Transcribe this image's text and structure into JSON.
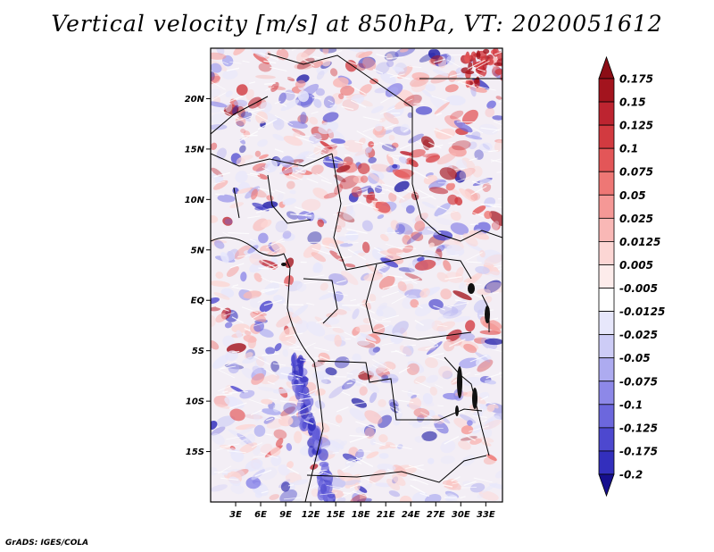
{
  "title": "Vertical velocity [m/s] at 850hPa, VT: 2020051612",
  "credit": "GrADS: IGES/COLA",
  "map": {
    "lon_range": [
      0,
      35
    ],
    "lat_range": [
      -20,
      25
    ],
    "lat_ticks": [
      {
        "value": 20,
        "label": "20N"
      },
      {
        "value": 15,
        "label": "15N"
      },
      {
        "value": 10,
        "label": "10N"
      },
      {
        "value": 5,
        "label": "5N"
      },
      {
        "value": 0,
        "label": "EQ"
      },
      {
        "value": -5,
        "label": "5S"
      },
      {
        "value": -10,
        "label": "10S"
      },
      {
        "value": -15,
        "label": "15S"
      }
    ],
    "lon_ticks": [
      {
        "value": 3,
        "label": "3E"
      },
      {
        "value": 6,
        "label": "6E"
      },
      {
        "value": 9,
        "label": "9E"
      },
      {
        "value": 12,
        "label": "12E"
      },
      {
        "value": 15,
        "label": "15E"
      },
      {
        "value": 18,
        "label": "18E"
      },
      {
        "value": 21,
        "label": "21E"
      },
      {
        "value": 24,
        "label": "24E"
      },
      {
        "value": 27,
        "label": "27E"
      },
      {
        "value": 30,
        "label": "30E"
      },
      {
        "value": 33,
        "label": "33E"
      }
    ]
  },
  "colorbar": {
    "levels": [
      {
        "label": "0.175",
        "color": "#a3141e"
      },
      {
        "label": "0.15",
        "color": "#bd2430"
      },
      {
        "label": "0.125",
        "color": "#d23a40"
      },
      {
        "label": "0.1",
        "color": "#e35658"
      },
      {
        "label": "0.075",
        "color": "#ee7775"
      },
      {
        "label": "0.05",
        "color": "#f59896"
      },
      {
        "label": "0.025",
        "color": "#f9b8b6"
      },
      {
        "label": "0.0125",
        "color": "#fcd6d4"
      },
      {
        "label": "0.005",
        "color": "#fdeceb"
      },
      {
        "label": "-0.005",
        "color": "#ffffff"
      },
      {
        "label": "-0.0125",
        "color": "#e7e7fb"
      },
      {
        "label": "-0.025",
        "color": "#cdccf6"
      },
      {
        "label": "-0.05",
        "color": "#adabf0"
      },
      {
        "label": "-0.075",
        "color": "#8d88e8"
      },
      {
        "label": "-0.1",
        "color": "#6c67dd"
      },
      {
        "label": "-0.125",
        "color": "#4d48cf"
      },
      {
        "label": "-0.175",
        "color": "#332fbd"
      },
      {
        "label": "-0.2",
        "color": "#1f1ca5"
      }
    ],
    "top_color": "#8c0d16",
    "bottom_color": "#160f8e"
  }
}
